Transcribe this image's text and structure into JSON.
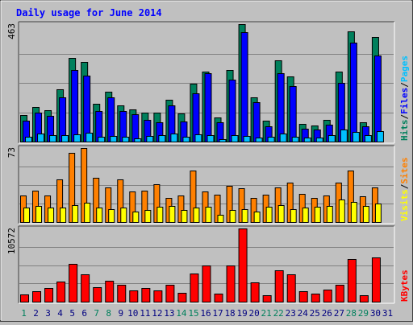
{
  "title": "Daily usage for June 2014",
  "colors": {
    "hits": "#00805c",
    "files": "#0000ff",
    "pages": "#00c0ff",
    "visits": "#ff8000",
    "sites": "#ffff00",
    "kbytes": "#ff0000",
    "weekend_label": "#00805c",
    "weekday_label": "#000080",
    "title": "#0000ff",
    "background": "#c0c0c0",
    "panel": "#c0c0c0"
  },
  "chart_data": {
    "type": "bar",
    "title": "Daily usage for June 2014",
    "categories": [
      "1",
      "2",
      "3",
      "4",
      "5",
      "6",
      "7",
      "8",
      "9",
      "10",
      "11",
      "12",
      "13",
      "14",
      "15",
      "16",
      "17",
      "18",
      "19",
      "20",
      "21",
      "22",
      "23",
      "24",
      "25",
      "26",
      "27",
      "28",
      "29",
      "30",
      "31"
    ],
    "weekend_days": [
      "1",
      "7",
      "8",
      "14",
      "15",
      "21",
      "22",
      "28",
      "29"
    ],
    "panels": [
      {
        "name": "hits-files-pages",
        "ymax_label": "463",
        "ymax": 463,
        "right_labels": [
          {
            "text": "Hits",
            "color": "#00805c"
          },
          {
            "text": "/",
            "color": "#000000"
          },
          {
            "text": "Files",
            "color": "#0000ff"
          },
          {
            "text": "/",
            "color": "#000000"
          },
          {
            "text": "Pages",
            "color": "#00c0ff"
          }
        ],
        "series": [
          {
            "name": "Hits",
            "color": "#00805c",
            "values": [
              105,
              137,
              124,
              206,
              329,
              315,
              150,
              197,
              142,
              127,
              113,
              113,
              166,
              110,
              227,
              275,
              94,
              281,
              463,
              173,
              82,
              321,
              256,
              69,
              63,
              86,
              275,
              434,
              77,
              411,
              0
            ]
          },
          {
            "name": "Files",
            "color": "#0000ff",
            "values": [
              83,
              113,
              102,
              173,
              281,
              260,
              122,
              173,
              120,
              108,
              87,
              76,
              142,
              79,
              191,
              269,
              76,
              244,
              431,
              154,
              60,
              269,
              218,
              51,
              48,
              67,
              230,
              389,
              59,
              338,
              0
            ]
          },
          {
            "name": "Pages",
            "color": "#00c0ff",
            "values": [
              19,
              31,
              25,
              24,
              27,
              35,
              20,
              21,
              20,
              14,
              22,
              26,
              31,
              20,
              28,
              25,
              11,
              25,
              23,
              16,
              19,
              31,
              18,
              15,
              17,
              25,
              47,
              39,
              26,
              41,
              0
            ]
          }
        ]
      },
      {
        "name": "visits-sites",
        "ymax_label": "73",
        "ymax": 73,
        "right_labels": [
          {
            "text": "Visits",
            "color": "#ffff00"
          },
          {
            "text": "/",
            "color": "#000000"
          },
          {
            "text": "Sites",
            "color": "#ff8000"
          }
        ],
        "series": [
          {
            "name": "Visits",
            "color": "#ff8000",
            "values": [
              26,
              31,
              26,
              42,
              68,
              73,
              44,
              34,
              42,
              30,
              31,
              37,
              24,
              26,
              51,
              30,
              27,
              36,
              33,
              24,
              27,
              34,
              39,
              28,
              24,
              26,
              39,
              51,
              25,
              34,
              0
            ]
          },
          {
            "name": "Sites",
            "color": "#ffff00",
            "values": [
              14,
              16,
              14,
              14,
              17,
              19,
              14,
              13,
              14,
              10,
              12,
              15,
              16,
              12,
              14,
              15,
              7,
              12,
              13,
              10,
              15,
              17,
              13,
              14,
              15,
              16,
              22,
              20,
              16,
              18,
              0
            ]
          }
        ]
      },
      {
        "name": "kbytes",
        "ymax_label": "10572",
        "ymax": 10572,
        "right_labels": [
          {
            "text": "KBytes",
            "color": "#ff0000"
          }
        ],
        "series": [
          {
            "name": "KBytes",
            "color": "#ff0000",
            "values": [
              1070,
              1541,
              2003,
              2895,
              5494,
              3893,
              2108,
              3077,
              2404,
              1645,
              1918,
              1682,
              2479,
              1297,
              4022,
              5283,
              1155,
              5283,
              10572,
              2844,
              877,
              4534,
              3971,
              1459,
              1156,
              1746,
              2422,
              6162,
              987,
              6386,
              0
            ]
          }
        ]
      }
    ]
  }
}
